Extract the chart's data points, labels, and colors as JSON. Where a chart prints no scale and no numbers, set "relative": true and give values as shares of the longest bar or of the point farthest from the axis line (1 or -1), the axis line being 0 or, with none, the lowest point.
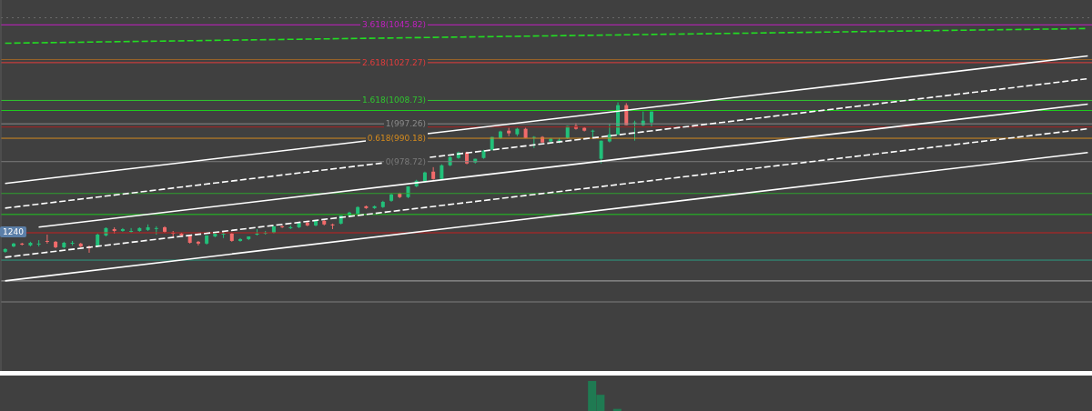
{
  "chart_data": [
    {
      "type": "candlestick",
      "categories": [
        null,
        null,
        null,
        null,
        null,
        null,
        null,
        null,
        null,
        null,
        null,
        null,
        null,
        null,
        null,
        null,
        null,
        null,
        null,
        null,
        null,
        null,
        null,
        null,
        null,
        null,
        null,
        null,
        null,
        null,
        null,
        null,
        null,
        null,
        null,
        null,
        null,
        null,
        null,
        null,
        null,
        null,
        null,
        null,
        null,
        null,
        null,
        null,
        null,
        null,
        null,
        null,
        null,
        null,
        null,
        null,
        null,
        null,
        null,
        null,
        null,
        null,
        null,
        null,
        null,
        null,
        null,
        null,
        null,
        null,
        null,
        null,
        null,
        null,
        null,
        null,
        null,
        null,
        null,
        null,
        null,
        null,
        null,
        null,
        null,
        null,
        null,
        null,
        null,
        null,
        null,
        null,
        null,
        null,
        null,
        null,
        null,
        null,
        null,
        null,
        null,
        null,
        null,
        null,
        null,
        null,
        null,
        null,
        null,
        null,
        null,
        null,
        null,
        null,
        null,
        null,
        null,
        null,
        null,
        null,
        null,
        null,
        null,
        null,
        null,
        null,
        null,
        null,
        null,
        null
      ],
      "ohlc": [
        [
          934.5,
          936.2,
          934.0,
          935.8
        ],
        [
          937.1,
          938.9,
          936.7,
          938.5
        ],
        [
          938.5,
          938.9,
          937.6,
          938.0
        ],
        [
          937.6,
          939.4,
          937.1,
          938.9
        ],
        [
          938.5,
          940.2,
          937.1,
          938.5
        ],
        [
          939.8,
          942.9,
          938.5,
          939.4
        ],
        [
          939.4,
          939.8,
          936.2,
          936.7
        ],
        [
          936.7,
          939.4,
          936.2,
          938.9
        ],
        [
          938.5,
          939.8,
          937.6,
          938.9
        ],
        [
          938.5,
          938.9,
          936.7,
          937.1
        ],
        [
          937.1,
          937.6,
          934.0,
          936.2
        ],
        [
          937.1,
          943.4,
          936.7,
          942.9
        ],
        [
          942.5,
          946.5,
          942.0,
          946.1
        ],
        [
          945.6,
          946.5,
          943.4,
          944.7
        ],
        [
          944.7,
          946.1,
          944.3,
          945.6
        ],
        [
          944.7,
          946.1,
          943.8,
          944.7
        ],
        [
          944.7,
          946.5,
          944.3,
          946.1
        ],
        [
          945.2,
          947.9,
          944.7,
          946.5
        ],
        [
          946.1,
          947.0,
          942.9,
          946.1
        ],
        [
          946.5,
          947.0,
          943.8,
          944.3
        ],
        [
          943.8,
          944.7,
          941.6,
          943.4
        ],
        [
          943.4,
          943.8,
          942.0,
          942.5
        ],
        [
          942.5,
          942.9,
          938.5,
          938.9
        ],
        [
          939.4,
          939.8,
          937.6,
          938.5
        ],
        [
          938.5,
          942.5,
          938.0,
          942.5
        ],
        [
          942.0,
          943.4,
          941.6,
          943.4
        ],
        [
          943.4,
          944.3,
          941.2,
          943.4
        ],
        [
          943.4,
          943.8,
          939.4,
          939.8
        ],
        [
          939.8,
          941.2,
          939.4,
          940.7
        ],
        [
          940.7,
          942.0,
          940.2,
          942.0
        ],
        [
          942.9,
          945.6,
          942.5,
          943.4
        ],
        [
          943.4,
          944.7,
          942.9,
          943.8
        ],
        [
          943.8,
          947.0,
          943.4,
          947.0
        ],
        [
          947.0,
          947.4,
          946.1,
          946.5
        ],
        [
          946.5,
          947.4,
          945.6,
          946.5
        ],
        [
          946.5,
          948.8,
          946.1,
          948.8
        ],
        [
          948.8,
          949.7,
          947.0,
          947.4
        ],
        [
          947.4,
          950.1,
          947.0,
          949.7
        ],
        [
          949.7,
          950.1,
          947.4,
          947.9
        ],
        [
          947.9,
          948.3,
          945.6,
          947.4
        ],
        [
          948.3,
          952.3,
          947.9,
          952.3
        ],
        [
          952.3,
          954.1,
          951.9,
          953.7
        ],
        [
          953.2,
          956.8,
          952.8,
          956.4
        ],
        [
          956.8,
          957.2,
          955.5,
          955.9
        ],
        [
          955.9,
          957.2,
          955.5,
          956.8
        ],
        [
          956.4,
          959.5,
          956.0,
          959.0
        ],
        [
          959.5,
          963.1,
          959.0,
          962.6
        ],
        [
          963.1,
          963.5,
          960.8,
          961.3
        ],
        [
          961.3,
          966.6,
          960.8,
          966.6
        ],
        [
          966.6,
          969.8,
          966.2,
          969.3
        ],
        [
          968.9,
          973.8,
          968.4,
          973.4
        ],
        [
          973.8,
          976.0,
          969.8,
          970.2
        ],
        [
          970.2,
          977.4,
          969.8,
          976.9
        ],
        [
          976.9,
          981.4,
          976.5,
          980.9
        ],
        [
          980.5,
          983.6,
          980.1,
          983.2
        ],
        [
          983.2,
          983.6,
          977.4,
          977.8
        ],
        [
          978.3,
          980.1,
          977.8,
          980.1
        ],
        [
          980.5,
          984.5,
          980.1,
          984.1
        ],
        [
          984.5,
          990.8,
          984.1,
          990.8
        ],
        [
          990.3,
          993.9,
          989.9,
          993.5
        ],
        [
          993.9,
          995.3,
          991.2,
          992.6
        ],
        [
          992.1,
          995.3,
          991.2,
          994.8
        ],
        [
          994.8,
          995.3,
          990.3,
          990.3
        ],
        [
          990.8,
          991.2,
          985.4,
          990.8
        ],
        [
          990.8,
          991.2,
          988.1,
          988.1
        ],
        [
          988.6,
          990.3,
          987.7,
          989.9
        ],
        [
          989.0,
          990.3,
          987.7,
          989.4
        ],
        [
          990.3,
          996.2,
          989.9,
          996.2
        ],
        [
          996.2,
          997.5,
          994.4,
          994.8
        ],
        [
          995.3,
          995.7,
          993.5,
          993.9
        ],
        [
          993.5,
          994.4,
          990.3,
          993.9
        ],
        [
          980.1,
          989.0,
          977.8,
          989.0
        ],
        [
          988.6,
          997.1,
          988.1,
          992.1
        ],
        [
          992.1,
          1007.8,
          991.7,
          1006.4
        ],
        [
          1006.4,
          1007.4,
          996.6,
          996.6
        ],
        [
          997.5,
          998.8,
          989.0,
          997.9
        ],
        [
          996.6,
          1003.3,
          996.2,
          998.8
        ],
        [
          997.9,
          1003.3,
          995.7,
          1003.3
        ],
        null,
        null,
        null,
        null,
        null,
        null,
        null,
        null,
        null,
        null,
        null,
        null,
        null,
        null,
        null,
        null,
        null,
        null,
        null,
        null,
        null,
        null,
        null,
        null,
        null,
        null,
        null,
        null,
        null,
        null,
        null,
        null,
        null,
        null,
        null,
        null,
        null,
        null,
        null,
        null,
        null,
        null,
        null,
        null,
        null,
        null,
        null,
        null,
        null,
        null,
        null,
        null
      ],
      "ylim": [
        876,
        1058
      ],
      "series": [
        {
          "type": "line",
          "color": "#ffffff",
          "line_style": "solid",
          "values": [
            968.0,
            null,
            null,
            null,
            null,
            null,
            null,
            null,
            null,
            null,
            null,
            null,
            null,
            null,
            null,
            null,
            null,
            null,
            null,
            null,
            null,
            null,
            null,
            null,
            null,
            null,
            null,
            null,
            null,
            null,
            null,
            null,
            null,
            null,
            null,
            null,
            null,
            null,
            null,
            null,
            null,
            null,
            null,
            null,
            null,
            null,
            null,
            null,
            null,
            null,
            null,
            null,
            null,
            null,
            null,
            null,
            null,
            null,
            null,
            null,
            null,
            null,
            null,
            null,
            null,
            null,
            null,
            null,
            null,
            null,
            null,
            null,
            null,
            null,
            null,
            null,
            null,
            null,
            null,
            null,
            null,
            null,
            null,
            null,
            null,
            null,
            null,
            null,
            null,
            null,
            null,
            null,
            null,
            null,
            null,
            null,
            null,
            null,
            null,
            null,
            null,
            null,
            null,
            null,
            null,
            null,
            null,
            null,
            null,
            null,
            null,
            null,
            null,
            null,
            null,
            null,
            null,
            null,
            null,
            null,
            null,
            null,
            null,
            null,
            null,
            null,
            null,
            null,
            null,
            1030.6
          ]
        },
        {
          "type": "line",
          "color": "#ffffff",
          "line_style": "dashed",
          "values": [
            955.9,
            null,
            null,
            null,
            null,
            null,
            null,
            null,
            null,
            null,
            null,
            null,
            null,
            null,
            null,
            null,
            null,
            null,
            null,
            null,
            null,
            null,
            null,
            null,
            null,
            null,
            null,
            null,
            null,
            null,
            null,
            null,
            null,
            null,
            null,
            null,
            null,
            null,
            null,
            null,
            null,
            null,
            null,
            null,
            null,
            null,
            null,
            null,
            null,
            null,
            null,
            null,
            null,
            null,
            null,
            null,
            null,
            null,
            null,
            null,
            null,
            null,
            null,
            null,
            null,
            null,
            null,
            null,
            null,
            null,
            null,
            null,
            null,
            null,
            null,
            null,
            null,
            null,
            null,
            null,
            null,
            null,
            null,
            null,
            null,
            null,
            null,
            null,
            null,
            null,
            null,
            null,
            null,
            null,
            null,
            null,
            null,
            null,
            null,
            null,
            null,
            null,
            null,
            null,
            null,
            null,
            null,
            null,
            null,
            null,
            null,
            null,
            null,
            null,
            null,
            null,
            null,
            null,
            null,
            null,
            null,
            null,
            null,
            null,
            null,
            null,
            null,
            null,
            null,
            1019.4
          ]
        },
        {
          "type": "line",
          "color": "#ffffff",
          "line_style": "solid",
          "values": [
            null,
            null,
            null,
            null,
            946.6,
            null,
            null,
            null,
            null,
            null,
            null,
            null,
            null,
            null,
            null,
            null,
            null,
            null,
            null,
            null,
            null,
            null,
            null,
            null,
            null,
            null,
            null,
            null,
            null,
            null,
            null,
            null,
            null,
            null,
            null,
            null,
            null,
            null,
            null,
            null,
            null,
            null,
            null,
            null,
            null,
            null,
            null,
            null,
            null,
            null,
            null,
            null,
            null,
            null,
            null,
            null,
            null,
            null,
            null,
            null,
            null,
            null,
            null,
            null,
            null,
            null,
            null,
            null,
            null,
            null,
            null,
            null,
            null,
            null,
            null,
            null,
            null,
            null,
            null,
            null,
            null,
            null,
            null,
            null,
            null,
            null,
            null,
            null,
            null,
            null,
            null,
            null,
            null,
            null,
            null,
            null,
            null,
            null,
            null,
            null,
            null,
            null,
            null,
            null,
            null,
            null,
            null,
            null,
            null,
            null,
            null,
            null,
            null,
            null,
            null,
            null,
            null,
            null,
            null,
            null,
            null,
            null,
            null,
            null,
            null,
            null,
            null,
            null,
            null,
            1006.9
          ]
        },
        {
          "type": "line",
          "color": "#ffffff",
          "line_style": "dashed",
          "values": [
            931.8,
            null,
            null,
            null,
            null,
            null,
            null,
            null,
            null,
            null,
            null,
            null,
            null,
            null,
            null,
            null,
            null,
            null,
            null,
            null,
            null,
            null,
            null,
            null,
            null,
            null,
            null,
            null,
            null,
            null,
            null,
            null,
            null,
            null,
            null,
            null,
            null,
            null,
            null,
            null,
            null,
            null,
            null,
            null,
            null,
            null,
            null,
            null,
            null,
            null,
            null,
            null,
            null,
            null,
            null,
            null,
            null,
            null,
            null,
            null,
            null,
            null,
            null,
            null,
            null,
            null,
            null,
            null,
            null,
            null,
            null,
            null,
            null,
            null,
            null,
            null,
            null,
            null,
            null,
            null,
            null,
            null,
            null,
            null,
            null,
            null,
            null,
            null,
            null,
            null,
            null,
            null,
            null,
            null,
            null,
            null,
            null,
            null,
            null,
            null,
            null,
            null,
            null,
            null,
            null,
            null,
            null,
            null,
            null,
            null,
            null,
            null,
            null,
            null,
            null,
            null,
            null,
            null,
            null,
            null,
            null,
            null,
            null,
            null,
            null,
            null,
            null,
            null,
            null,
            994.8
          ]
        },
        {
          "type": "line",
          "color": "#ffffff",
          "line_style": "solid",
          "values": [
            920.2,
            null,
            null,
            null,
            null,
            null,
            null,
            null,
            null,
            null,
            null,
            null,
            null,
            null,
            null,
            null,
            null,
            null,
            null,
            null,
            null,
            null,
            null,
            null,
            null,
            null,
            null,
            null,
            null,
            null,
            null,
            null,
            null,
            null,
            null,
            null,
            null,
            null,
            null,
            null,
            null,
            null,
            null,
            null,
            null,
            null,
            null,
            null,
            null,
            null,
            null,
            null,
            null,
            null,
            null,
            null,
            null,
            null,
            null,
            null,
            null,
            null,
            null,
            null,
            null,
            null,
            null,
            null,
            null,
            null,
            null,
            null,
            null,
            null,
            null,
            null,
            null,
            null,
            null,
            null,
            null,
            null,
            null,
            null,
            null,
            null,
            null,
            null,
            null,
            null,
            null,
            null,
            null,
            null,
            null,
            null,
            null,
            null,
            null,
            null,
            null,
            null,
            null,
            null,
            null,
            null,
            null,
            null,
            null,
            null,
            null,
            null,
            null,
            null,
            null,
            null,
            null,
            null,
            null,
            null,
            null,
            null,
            null,
            null,
            null,
            null,
            null,
            null,
            null,
            983.2
          ]
        },
        {
          "type": "line",
          "color": "#22dd22",
          "line_style": "dashed",
          "values": [
            1036.8,
            null,
            null,
            null,
            null,
            null,
            null,
            null,
            null,
            null,
            null,
            null,
            null,
            null,
            null,
            null,
            null,
            null,
            null,
            null,
            null,
            null,
            null,
            null,
            null,
            null,
            null,
            null,
            null,
            null,
            null,
            null,
            null,
            null,
            null,
            null,
            null,
            null,
            null,
            null,
            null,
            null,
            null,
            null,
            null,
            null,
            null,
            null,
            null,
            null,
            null,
            null,
            null,
            null,
            null,
            null,
            null,
            null,
            null,
            null,
            null,
            null,
            null,
            null,
            null,
            null,
            null,
            null,
            null,
            null,
            null,
            null,
            null,
            null,
            null,
            null,
            null,
            null,
            null,
            null,
            null,
            null,
            null,
            null,
            null,
            null,
            null,
            null,
            null,
            null,
            null,
            null,
            null,
            null,
            null,
            null,
            null,
            null,
            null,
            null,
            null,
            null,
            null,
            null,
            null,
            null,
            null,
            null,
            null,
            null,
            null,
            null,
            null,
            null,
            null,
            null,
            null,
            null,
            null,
            null,
            null,
            null,
            null,
            null,
            null,
            null,
            null,
            null,
            null,
            1044.0
          ]
        }
      ],
      "ref_lines": [
        {
          "axis": "y",
          "value": 1045.82,
          "label": "3.618(1045.82)",
          "color": "#c21fc2"
        },
        {
          "axis": "y",
          "value": 1027.27,
          "label": "2.618(1027.27)",
          "color": "#e23c3c"
        },
        {
          "axis": "y",
          "value": 1008.73,
          "label": "1.618(1008.73)",
          "color": "#2fc42f"
        },
        {
          "axis": "y",
          "value": 997.26,
          "label": "1(997.26)",
          "color": "#8a8a8a"
        },
        {
          "axis": "y",
          "value": 990.18,
          "label": "0.618(990.18)",
          "color": "#d38a1e"
        },
        {
          "axis": "y",
          "value": 978.72,
          "label": "0(978.72)",
          "color": "#7a7a7a"
        },
        {
          "axis": "y",
          "value": 1049.3,
          "color": "#6a6a6a",
          "line_style": "dotted"
        },
        {
          "axis": "y",
          "value": 1028.8,
          "color": "#9a6428"
        },
        {
          "axis": "y",
          "value": 1003.8,
          "color": "#1ec81e"
        },
        {
          "axis": "y",
          "value": 995.7,
          "color": "#a52020"
        },
        {
          "axis": "y",
          "value": 963.1,
          "color": "#2ea02e"
        },
        {
          "axis": "y",
          "value": 952.8,
          "color": "#1ec81e"
        },
        {
          "axis": "y",
          "value": 943.8,
          "color": "#c41e1e"
        },
        {
          "axis": "y",
          "value": 930.4,
          "color": "#2a9a80"
        },
        {
          "axis": "y",
          "value": 920.2,
          "color": "#a8a8a8"
        },
        {
          "axis": "y",
          "value": 909.9,
          "color": "#7e7e7e"
        }
      ],
      "annotations": [
        "1240"
      ],
      "tick_labels": false
    },
    {
      "type": "bar",
      "relative": true,
      "color": "#1f7a52",
      "categories": [
        null,
        null,
        null,
        null,
        null,
        null,
        null,
        null,
        null,
        null,
        null,
        null,
        null,
        null,
        null,
        null,
        null,
        null,
        null,
        null,
        null,
        null,
        null,
        null,
        null,
        null,
        null,
        null,
        null,
        null,
        null,
        null,
        null,
        null,
        null,
        null,
        null,
        null,
        null,
        null,
        null,
        null,
        null,
        null,
        null,
        null,
        null,
        null,
        null,
        null,
        null,
        null,
        null,
        null,
        null,
        null,
        null,
        null,
        null,
        null,
        null,
        null,
        null,
        null,
        null,
        null,
        null,
        null,
        null,
        null,
        null,
        null,
        null,
        null,
        null,
        null,
        null,
        null,
        null,
        null,
        null,
        null,
        null,
        null,
        null,
        null,
        null,
        null,
        null,
        null,
        null,
        null,
        null,
        null,
        null,
        null,
        null,
        null,
        null,
        null,
        null,
        null,
        null,
        null,
        null,
        null,
        null,
        null,
        null,
        null,
        null,
        null,
        null,
        null,
        null,
        null,
        null,
        null,
        null,
        null,
        null,
        null,
        null,
        null,
        null,
        null,
        null,
        null,
        null,
        null
      ],
      "values": [
        null,
        null,
        null,
        null,
        null,
        null,
        null,
        null,
        null,
        null,
        null,
        null,
        null,
        null,
        null,
        null,
        null,
        null,
        null,
        null,
        null,
        null,
        null,
        null,
        null,
        null,
        null,
        null,
        null,
        null,
        null,
        null,
        null,
        null,
        null,
        null,
        null,
        null,
        null,
        null,
        null,
        null,
        null,
        null,
        null,
        null,
        null,
        null,
        null,
        null,
        null,
        null,
        null,
        null,
        null,
        null,
        null,
        null,
        null,
        null,
        null,
        null,
        null,
        null,
        null,
        null,
        null,
        null,
        null,
        null,
        1,
        0.54,
        null,
        0.07,
        null,
        null,
        null,
        null,
        null,
        null,
        null,
        null,
        null,
        null,
        null,
        null,
        null,
        null,
        null,
        null,
        null,
        null,
        null,
        null,
        null,
        null,
        null,
        null,
        null,
        null,
        null,
        null,
        null,
        null,
        null,
        null,
        null,
        null,
        null,
        null,
        null,
        null,
        null,
        null,
        null,
        null,
        null,
        null,
        null,
        null,
        null,
        null,
        null,
        null,
        null,
        null,
        null,
        null,
        null,
        null
      ],
      "tick_labels": false
    }
  ]
}
